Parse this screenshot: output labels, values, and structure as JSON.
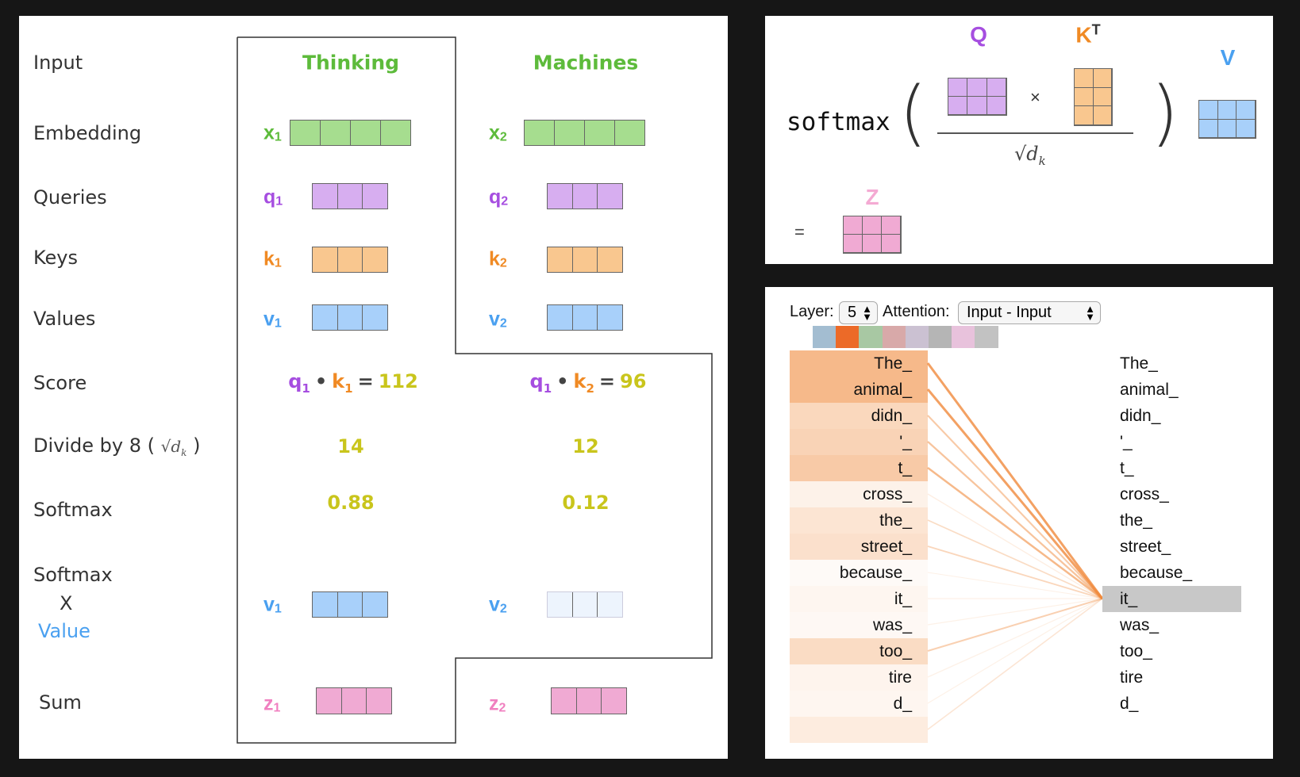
{
  "colors": {
    "green": "#a6dd8f",
    "purple": "#d7aef0",
    "orange": "#f9c78f",
    "blue": "#a8d0fa",
    "blue_faded": "#edf4fd",
    "pink": "#f0aad3",
    "attn": "#f08a3c"
  },
  "left": {
    "row_labels": {
      "input": "Input",
      "embedding": "Embedding",
      "queries": "Queries",
      "keys": "Keys",
      "values": "Values",
      "score": "Score",
      "divide": "Divide by 8 (",
      "divide_close": ")",
      "divide_math": "√d",
      "divide_math_sub": "k",
      "softmax": "Softmax",
      "softmax_x": "Softmax",
      "times": "X",
      "value": "Value",
      "sum": "Sum"
    },
    "columns": [
      {
        "word": "Thinking",
        "x": {
          "v": "x",
          "s": "1"
        },
        "q": {
          "v": "q",
          "s": "1"
        },
        "k": {
          "v": "k",
          "s": "1"
        },
        "val": {
          "v": "v",
          "s": "1"
        },
        "z": {
          "v": "z",
          "s": "1"
        },
        "score": {
          "q": "q",
          "qs": "1",
          "dot": "•",
          "k": "k",
          "ks": "1",
          "eq": "=",
          "result": "112"
        },
        "divided": "14",
        "softmax": "0.88"
      },
      {
        "word": "Machines",
        "x": {
          "v": "x",
          "s": "2"
        },
        "q": {
          "v": "q",
          "s": "2"
        },
        "k": {
          "v": "k",
          "s": "2"
        },
        "val": {
          "v": "v",
          "s": "2"
        },
        "z": {
          "v": "z",
          "s": "2"
        },
        "score": {
          "q": "q",
          "qs": "1",
          "dot": "•",
          "k": "k",
          "ks": "2",
          "eq": "=",
          "result": "96"
        },
        "divided": "12",
        "softmax": "0.12"
      }
    ]
  },
  "formula": {
    "softmax": "softmax",
    "open": "(",
    "close": ")",
    "q": "Q",
    "k": "K",
    "k_sup": "T",
    "times": "×",
    "sqrt": "√d",
    "sqrt_sub": "k",
    "v": "V",
    "z": "Z",
    "equals": "="
  },
  "viz": {
    "layer_label": "Layer:",
    "layer_value": "5",
    "attention_label": "Attention:",
    "attention_value": "Input - Input",
    "head_colors": [
      "#a3bdd1",
      "#ec6a28",
      "#a8c8a3",
      "#d8a9a9",
      "#cbc1d2",
      "#b5b5b5",
      "#e8c2dc",
      "#c2c2c2"
    ],
    "selected_head": 1,
    "tokens": [
      "The_",
      "animal_",
      "didn_",
      "'_",
      "t_",
      "cross_",
      "the_",
      "street_",
      "because_",
      "it_",
      "was_",
      "too_",
      "tire",
      "d_",
      ""
    ],
    "weights": [
      0.8,
      0.8,
      0.45,
      0.5,
      0.6,
      0.15,
      0.3,
      0.35,
      0.05,
      0.1,
      0.08,
      0.4,
      0.12,
      0.1,
      0.22
    ],
    "selected_token": 9
  }
}
